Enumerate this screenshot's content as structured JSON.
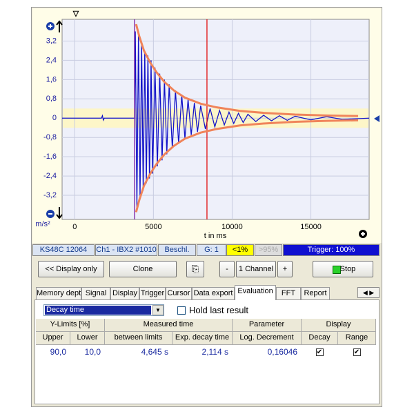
{
  "plot": {
    "y_unit": "m/s²",
    "x_label": "t in ms",
    "xlim": [
      -800,
      18700
    ],
    "ylim": [
      -4.2,
      4.1
    ],
    "xticks": [
      0,
      5000,
      10000,
      15000
    ],
    "yticks": [
      {
        "value": 3.2,
        "label": "3,2"
      },
      {
        "value": 2.4,
        "label": "2,4"
      },
      {
        "value": 1.6,
        "label": "1,6"
      },
      {
        "value": 0.8,
        "label": "0,8"
      },
      0,
      {
        "value": -0.8,
        "label": "-0,8"
      },
      {
        "value": -1.6,
        "label": "-1,6"
      },
      {
        "value": -2.4,
        "label": "-2,4"
      },
      {
        "value": -3.2,
        "label": "-3,2"
      }
    ],
    "grid": true,
    "limit_band": [
      -0.4,
      0.4
    ],
    "cursors": [
      {
        "x": 3800,
        "color": "#7a1fa2"
      },
      {
        "x": 8400,
        "color": "#e01010"
      }
    ],
    "signal": {
      "color": "#1414c8",
      "x": [
        -800,
        1700,
        1760,
        1820,
        1880,
        3800,
        3850,
        3950,
        4050,
        4150,
        4250,
        4350,
        4450,
        4550,
        4650,
        4750,
        4850,
        4950,
        5100,
        5250,
        5400,
        5550,
        5700,
        5850,
        6000,
        6200,
        6400,
        6600,
        6800,
        7000,
        7200,
        7400,
        7600,
        7800,
        8000,
        8300,
        8600,
        8900,
        9200,
        9500,
        9800,
        10100,
        10400,
        10700,
        11000,
        11500,
        12000,
        12500,
        13000,
        13500,
        14000,
        15000,
        16000,
        17000,
        18700
      ],
      "values": [
        0,
        0,
        0.1,
        -0.08,
        0,
        0,
        3.6,
        -3.7,
        3.4,
        -3.3,
        3.1,
        -3.0,
        2.8,
        -2.7,
        2.6,
        -2.5,
        2.4,
        -2.3,
        2.1,
        -2.0,
        1.85,
        -1.75,
        1.6,
        -1.5,
        1.4,
        -1.25,
        1.15,
        -1.05,
        0.95,
        -0.85,
        0.78,
        -0.7,
        0.63,
        -0.57,
        0.52,
        -0.45,
        0.4,
        -0.36,
        0.32,
        -0.28,
        0.25,
        -0.22,
        0.2,
        -0.18,
        0.16,
        -0.14,
        0.12,
        -0.11,
        0.1,
        -0.09,
        0.08,
        -0.07,
        0.06,
        -0.05,
        0
      ]
    },
    "envelope_upper": {
      "color": "#f0845a",
      "x": [
        3900,
        4100,
        4400,
        4800,
        5200,
        5700,
        6300,
        7000,
        8000,
        9000,
        10500,
        12000,
        14000,
        16000,
        18000
      ],
      "values": [
        3.9,
        3.4,
        2.8,
        2.3,
        1.9,
        1.5,
        1.15,
        0.85,
        0.6,
        0.45,
        0.3,
        0.22,
        0.15,
        0.11,
        0.09
      ]
    },
    "envelope_lower": {
      "color": "#f0845a",
      "x": [
        3900,
        4100,
        4400,
        4800,
        5200,
        5700,
        6300,
        7000,
        8000,
        9000,
        10500,
        12000,
        14000,
        16000,
        18000
      ],
      "values": [
        -3.9,
        -3.4,
        -2.8,
        -2.3,
        -1.9,
        -1.5,
        -1.15,
        -0.85,
        -0.6,
        -0.45,
        -0.3,
        -0.22,
        -0.15,
        -0.11,
        -0.09
      ]
    }
  },
  "status_bar": [
    "KS48C 12064",
    "Ch1 - IBX2 #1010",
    "Beschl.",
    "G: 1",
    "<1%",
    ">95%",
    "Trigger: 100%"
  ],
  "buttons": [
    "<< Display only",
    "Clone",
    "-",
    "1 Channel",
    "+",
    "Stop"
  ],
  "tabs": [
    "Memory depth",
    "Signal",
    "Display",
    "Trigger",
    "Cursor",
    "Data export",
    "Evaluation",
    "FFT",
    "Report"
  ],
  "active_tab": 6,
  "dropdown": "Decay time",
  "checkbox_label": "Hold last result",
  "table": {
    "group_headers": [
      "Y-Limits [%]",
      "Measured time",
      "Parameter",
      "Display"
    ],
    "headers": [
      "Upper",
      "Lower",
      "between limits",
      "Exp. decay time",
      "Log. Decrement",
      "Decay",
      "Range"
    ],
    "rows": [
      [
        "90,0",
        "10,0",
        "4,645 s",
        "2,114 s",
        "0,16046"
      ]
    ],
    "checked": [
      [
        true,
        true
      ]
    ]
  }
}
